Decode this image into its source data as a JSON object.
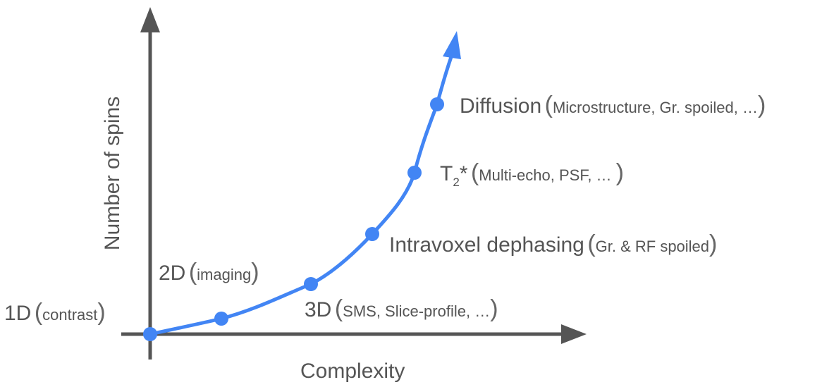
{
  "axes": {
    "x_label": "Complexity",
    "y_label": "Number of spins"
  },
  "colors": {
    "axis": "#555555",
    "curve": "#4285F4",
    "text": "#555555"
  },
  "points": [
    {
      "main": "1D",
      "detail": "contrast"
    },
    {
      "main": "2D",
      "detail": "imaging"
    },
    {
      "main": "3D",
      "detail": "SMS, Slice-profile, …"
    },
    {
      "main": "Intravoxel dephasing",
      "detail": "Gr. & RF spoiled"
    },
    {
      "main_base": "T",
      "main_sub": "2",
      "main_suffix": "*",
      "detail": "Multi-echo, PSF, … "
    },
    {
      "main": "Diffusion",
      "detail": "Microstructure, Gr. spoiled, …"
    }
  ]
}
